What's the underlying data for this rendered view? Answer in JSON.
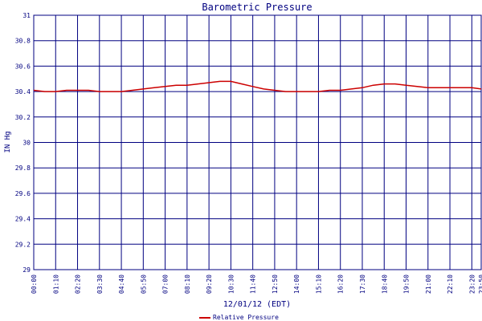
{
  "chart_data": {
    "type": "line",
    "title": "Barometric Pressure",
    "xlabel": "12/01/12 (EDT)",
    "ylabel": "IN Hg",
    "ylim": [
      29,
      31
    ],
    "grid": true,
    "legend_position": "bottom-center",
    "y_ticks": [
      "29",
      "29.2",
      "29.4",
      "29.6",
      "29.8",
      "30",
      "30.2",
      "30.4",
      "30.6",
      "30.8",
      "31"
    ],
    "x_ticks": [
      "00:00",
      "01:10",
      "02:20",
      "03:30",
      "04:40",
      "05:50",
      "07:00",
      "08:10",
      "09:20",
      "10:30",
      "11:40",
      "12:50",
      "14:00",
      "15:10",
      "16:20",
      "17:30",
      "18:40",
      "19:50",
      "21:00",
      "22:10",
      "23:20",
      "23:50"
    ],
    "series": [
      {
        "name": "Relative Pressure",
        "color": "#cc0000",
        "x": [
          "00:00",
          "00:35",
          "01:10",
          "01:45",
          "02:20",
          "02:55",
          "03:30",
          "04:05",
          "04:40",
          "05:15",
          "05:50",
          "06:25",
          "07:00",
          "07:35",
          "08:10",
          "08:45",
          "09:20",
          "09:55",
          "10:30",
          "11:05",
          "11:40",
          "12:15",
          "12:50",
          "13:25",
          "14:00",
          "14:35",
          "15:10",
          "15:45",
          "16:20",
          "16:55",
          "17:30",
          "18:05",
          "18:40",
          "19:15",
          "19:50",
          "20:25",
          "21:00",
          "21:35",
          "22:10",
          "22:45",
          "23:20",
          "23:50"
        ],
        "values": [
          30.41,
          30.4,
          30.4,
          30.41,
          30.41,
          30.41,
          30.4,
          30.4,
          30.4,
          30.41,
          30.42,
          30.43,
          30.44,
          30.45,
          30.45,
          30.46,
          30.47,
          30.48,
          30.48,
          30.46,
          30.44,
          30.42,
          30.41,
          30.4,
          30.4,
          30.4,
          30.4,
          30.41,
          30.41,
          30.42,
          30.43,
          30.45,
          30.46,
          30.46,
          30.45,
          30.44,
          30.43,
          30.43,
          30.43,
          30.43,
          30.43,
          30.42
        ]
      }
    ]
  }
}
